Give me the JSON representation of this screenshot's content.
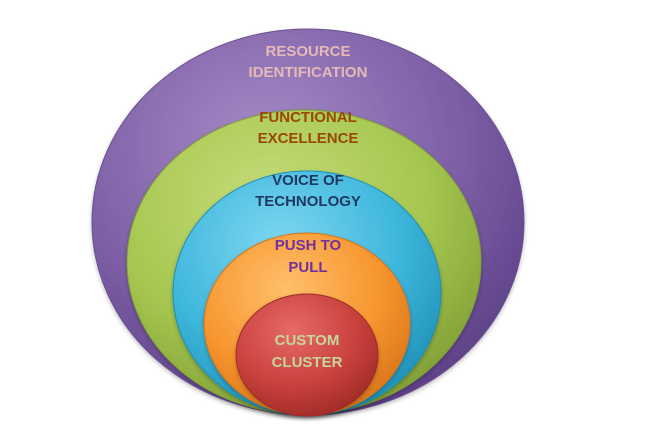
{
  "layers": [
    {
      "lines": [
        "RESOURCE",
        "IDENTIFICATION"
      ],
      "text_color": "#e6b9b8",
      "fill": "#8064a2"
    },
    {
      "lines": [
        "FUNCTIONAL",
        "EXCELLENCE"
      ],
      "text_color": "#984807",
      "fill": "#9bbb59"
    },
    {
      "lines": [
        "VOICE OF",
        "TECHNOLOGY"
      ],
      "text_color": "#1f3864",
      "fill": "#4bacc6"
    },
    {
      "lines": [
        "PUSH TO",
        "PULL"
      ],
      "text_color": "#7030a0",
      "fill": "#f79646"
    },
    {
      "lines": [
        "CUSTOM",
        "CLUSTER"
      ],
      "text_color": "#c4d79b",
      "fill": "#c0504d"
    }
  ]
}
